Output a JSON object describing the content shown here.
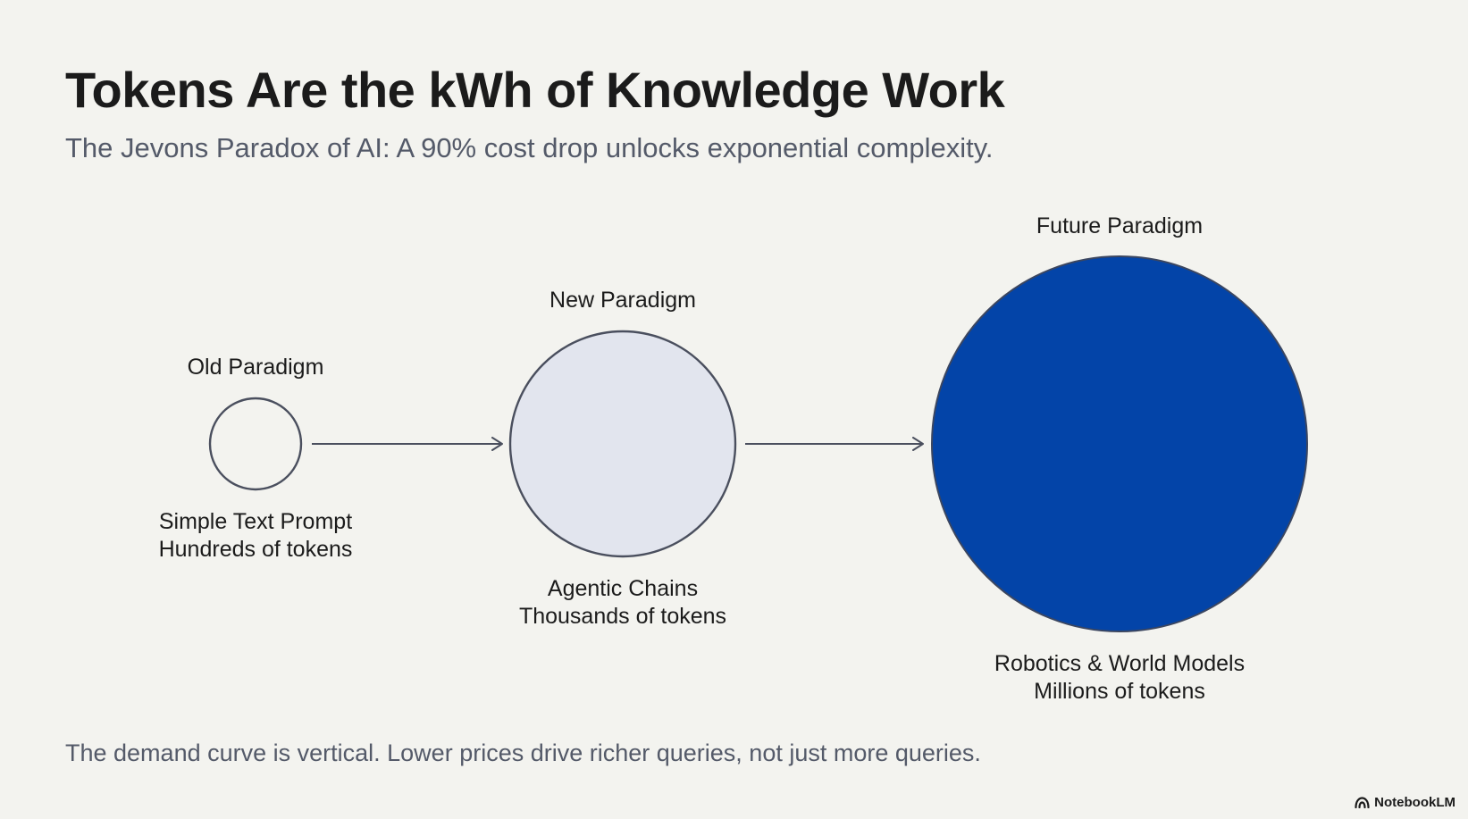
{
  "slide": {
    "title": "Tokens Are the kWh of Knowledge Work",
    "subtitle": "The Jevons Paradox of AI: A 90% cost drop unlocks exponential complexity.",
    "footer": "The demand curve is vertical. Lower prices drive richer queries, not just more queries."
  },
  "stages": [
    {
      "label": "Old Paradigm",
      "desc_line1": "Simple Text Prompt",
      "desc_line2": "Hundreds of tokens",
      "fill": "#f3f3ef",
      "stroke": "#4a4f5e"
    },
    {
      "label": "New Paradigm",
      "desc_line1": "Agentic Chains",
      "desc_line2": "Thousands of tokens",
      "fill": "#e2e5ee",
      "stroke": "#4a4f5e"
    },
    {
      "label": "Future Paradigm",
      "desc_line1": "Robotics & World Models",
      "desc_line2": "Millions of tokens",
      "fill": "#0344a8",
      "stroke": "#3b4660"
    }
  ],
  "brand": {
    "name": "NotebookLM",
    "icon": "notebooklm-logo-icon"
  },
  "colors": {
    "background": "#f3f3ef",
    "arrow": "#4a4f5e",
    "accent": "#0344a8"
  }
}
